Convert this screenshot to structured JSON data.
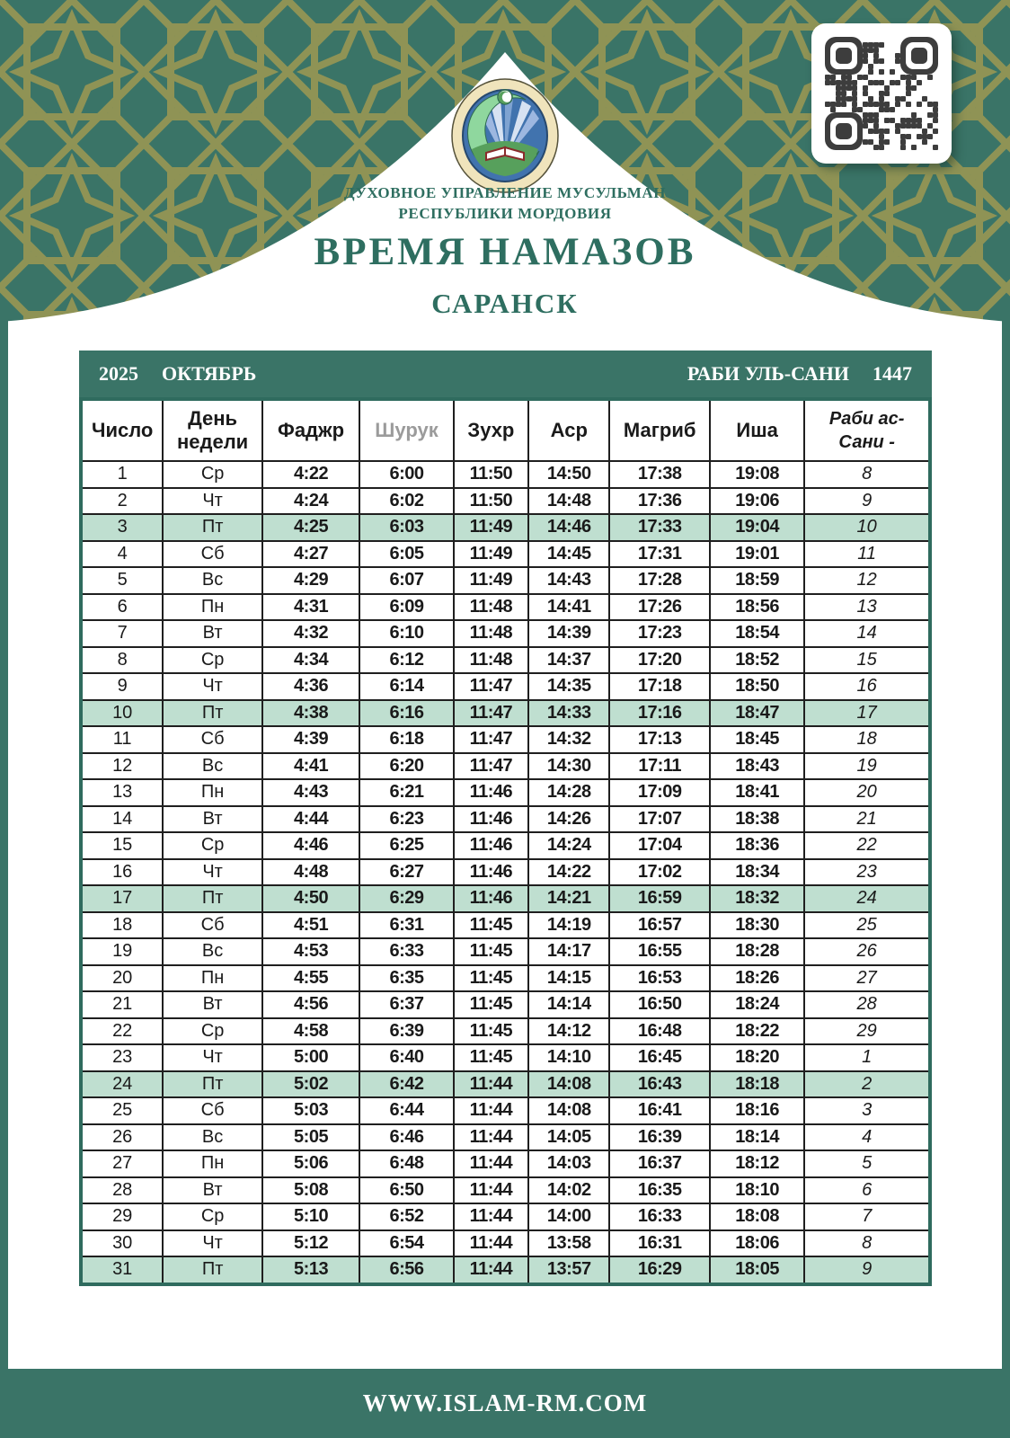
{
  "header": {
    "org_line1": "ДУХОВНОЕ УПРАВЛЕНИЕ МУСУЛЬМАН",
    "org_line2": "РЕСПУБЛИКИ МОРДОВИЯ",
    "title": "ВРЕМЯ НАМАЗОВ",
    "city": "САРАНСК"
  },
  "calendar_bar": {
    "year": "2025",
    "month": "ОКТЯБРЬ",
    "hijri_month": "РАБИ УЛЬ-САНИ",
    "hijri_year": "1447"
  },
  "icons": {
    "emblem": "crescent-rays-book-emblem",
    "qr": "qr-code"
  },
  "colors": {
    "teal_green": "#3A7467",
    "olive_pattern": "#8F9355",
    "highlight_row": "#BFDFD0",
    "muted_gray": "#9B9B9B",
    "title_green": "#2E6E60",
    "table_outline": "#2F6B5E",
    "cell_border": "#1F1F1F",
    "emblem_cream": "#F0E4BC"
  },
  "table": {
    "columns": [
      "Число",
      "День\nнедели",
      "Фаджр",
      "Шурук",
      "Зухр",
      "Аср",
      "Магриб",
      "Иша",
      "Раби ас-\nСани -"
    ],
    "column_keys": [
      "date",
      "dow",
      "fajr",
      "shuruk",
      "zuhr",
      "asr",
      "maghrib",
      "isha",
      "hijri"
    ],
    "rows": [
      {
        "date": "1",
        "dow": "Ср",
        "fajr": "4:22",
        "shuruk": "6:00",
        "zuhr": "11:50",
        "asr": "14:50",
        "maghrib": "17:38",
        "isha": "19:08",
        "hijri": "8",
        "highlighted": false
      },
      {
        "date": "2",
        "dow": "Чт",
        "fajr": "4:24",
        "shuruk": "6:02",
        "zuhr": "11:50",
        "asr": "14:48",
        "maghrib": "17:36",
        "isha": "19:06",
        "hijri": "9",
        "highlighted": false
      },
      {
        "date": "3",
        "dow": "Пт",
        "fajr": "4:25",
        "shuruk": "6:03",
        "zuhr": "11:49",
        "asr": "14:46",
        "maghrib": "17:33",
        "isha": "19:04",
        "hijri": "10",
        "highlighted": true
      },
      {
        "date": "4",
        "dow": "Сб",
        "fajr": "4:27",
        "shuruk": "6:05",
        "zuhr": "11:49",
        "asr": "14:45",
        "maghrib": "17:31",
        "isha": "19:01",
        "hijri": "11",
        "highlighted": false
      },
      {
        "date": "5",
        "dow": "Вс",
        "fajr": "4:29",
        "shuruk": "6:07",
        "zuhr": "11:49",
        "asr": "14:43",
        "maghrib": "17:28",
        "isha": "18:59",
        "hijri": "12",
        "highlighted": false
      },
      {
        "date": "6",
        "dow": "Пн",
        "fajr": "4:31",
        "shuruk": "6:09",
        "zuhr": "11:48",
        "asr": "14:41",
        "maghrib": "17:26",
        "isha": "18:56",
        "hijri": "13",
        "highlighted": false
      },
      {
        "date": "7",
        "dow": "Вт",
        "fajr": "4:32",
        "shuruk": "6:10",
        "zuhr": "11:48",
        "asr": "14:39",
        "maghrib": "17:23",
        "isha": "18:54",
        "hijri": "14",
        "highlighted": false
      },
      {
        "date": "8",
        "dow": "Ср",
        "fajr": "4:34",
        "shuruk": "6:12",
        "zuhr": "11:48",
        "asr": "14:37",
        "maghrib": "17:20",
        "isha": "18:52",
        "hijri": "15",
        "highlighted": false
      },
      {
        "date": "9",
        "dow": "Чт",
        "fajr": "4:36",
        "shuruk": "6:14",
        "zuhr": "11:47",
        "asr": "14:35",
        "maghrib": "17:18",
        "isha": "18:50",
        "hijri": "16",
        "highlighted": false
      },
      {
        "date": "10",
        "dow": "Пт",
        "fajr": "4:38",
        "shuruk": "6:16",
        "zuhr": "11:47",
        "asr": "14:33",
        "maghrib": "17:16",
        "isha": "18:47",
        "hijri": "17",
        "highlighted": true
      },
      {
        "date": "11",
        "dow": "Сб",
        "fajr": "4:39",
        "shuruk": "6:18",
        "zuhr": "11:47",
        "asr": "14:32",
        "maghrib": "17:13",
        "isha": "18:45",
        "hijri": "18",
        "highlighted": false
      },
      {
        "date": "12",
        "dow": "Вс",
        "fajr": "4:41",
        "shuruk": "6:20",
        "zuhr": "11:47",
        "asr": "14:30",
        "maghrib": "17:11",
        "isha": "18:43",
        "hijri": "19",
        "highlighted": false
      },
      {
        "date": "13",
        "dow": "Пн",
        "fajr": "4:43",
        "shuruk": "6:21",
        "zuhr": "11:46",
        "asr": "14:28",
        "maghrib": "17:09",
        "isha": "18:41",
        "hijri": "20",
        "highlighted": false
      },
      {
        "date": "14",
        "dow": "Вт",
        "fajr": "4:44",
        "shuruk": "6:23",
        "zuhr": "11:46",
        "asr": "14:26",
        "maghrib": "17:07",
        "isha": "18:38",
        "hijri": "21",
        "highlighted": false
      },
      {
        "date": "15",
        "dow": "Ср",
        "fajr": "4:46",
        "shuruk": "6:25",
        "zuhr": "11:46",
        "asr": "14:24",
        "maghrib": "17:04",
        "isha": "18:36",
        "hijri": "22",
        "highlighted": false
      },
      {
        "date": "16",
        "dow": "Чт",
        "fajr": "4:48",
        "shuruk": "6:27",
        "zuhr": "11:46",
        "asr": "14:22",
        "maghrib": "17:02",
        "isha": "18:34",
        "hijri": "23",
        "highlighted": false
      },
      {
        "date": "17",
        "dow": "Пт",
        "fajr": "4:50",
        "shuruk": "6:29",
        "zuhr": "11:46",
        "asr": "14:21",
        "maghrib": "16:59",
        "isha": "18:32",
        "hijri": "24",
        "highlighted": true
      },
      {
        "date": "18",
        "dow": "Сб",
        "fajr": "4:51",
        "shuruk": "6:31",
        "zuhr": "11:45",
        "asr": "14:19",
        "maghrib": "16:57",
        "isha": "18:30",
        "hijri": "25",
        "highlighted": false
      },
      {
        "date": "19",
        "dow": "Вс",
        "fajr": "4:53",
        "shuruk": "6:33",
        "zuhr": "11:45",
        "asr": "14:17",
        "maghrib": "16:55",
        "isha": "18:28",
        "hijri": "26",
        "highlighted": false
      },
      {
        "date": "20",
        "dow": "Пн",
        "fajr": "4:55",
        "shuruk": "6:35",
        "zuhr": "11:45",
        "asr": "14:15",
        "maghrib": "16:53",
        "isha": "18:26",
        "hijri": "27",
        "highlighted": false
      },
      {
        "date": "21",
        "dow": "Вт",
        "fajr": "4:56",
        "shuruk": "6:37",
        "zuhr": "11:45",
        "asr": "14:14",
        "maghrib": "16:50",
        "isha": "18:24",
        "hijri": "28",
        "highlighted": false
      },
      {
        "date": "22",
        "dow": "Ср",
        "fajr": "4:58",
        "shuruk": "6:39",
        "zuhr": "11:45",
        "asr": "14:12",
        "maghrib": "16:48",
        "isha": "18:22",
        "hijri": "29",
        "highlighted": false
      },
      {
        "date": "23",
        "dow": "Чт",
        "fajr": "5:00",
        "shuruk": "6:40",
        "zuhr": "11:45",
        "asr": "14:10",
        "maghrib": "16:45",
        "isha": "18:20",
        "hijri": "1",
        "highlighted": false
      },
      {
        "date": "24",
        "dow": "Пт",
        "fajr": "5:02",
        "shuruk": "6:42",
        "zuhr": "11:44",
        "asr": "14:08",
        "maghrib": "16:43",
        "isha": "18:18",
        "hijri": "2",
        "highlighted": true
      },
      {
        "date": "25",
        "dow": "Сб",
        "fajr": "5:03",
        "shuruk": "6:44",
        "zuhr": "11:44",
        "asr": "14:08",
        "maghrib": "16:41",
        "isha": "18:16",
        "hijri": "3",
        "highlighted": false
      },
      {
        "date": "26",
        "dow": "Вс",
        "fajr": "5:05",
        "shuruk": "6:46",
        "zuhr": "11:44",
        "asr": "14:05",
        "maghrib": "16:39",
        "isha": "18:14",
        "hijri": "4",
        "highlighted": false
      },
      {
        "date": "27",
        "dow": "Пн",
        "fajr": "5:06",
        "shuruk": "6:48",
        "zuhr": "11:44",
        "asr": "14:03",
        "maghrib": "16:37",
        "isha": "18:12",
        "hijri": "5",
        "highlighted": false
      },
      {
        "date": "28",
        "dow": "Вт",
        "fajr": "5:08",
        "shuruk": "6:50",
        "zuhr": "11:44",
        "asr": "14:02",
        "maghrib": "16:35",
        "isha": "18:10",
        "hijri": "6",
        "highlighted": false
      },
      {
        "date": "29",
        "dow": "Ср",
        "fajr": "5:10",
        "shuruk": "6:52",
        "zuhr": "11:44",
        "asr": "14:00",
        "maghrib": "16:33",
        "isha": "18:08",
        "hijri": "7",
        "highlighted": false
      },
      {
        "date": "30",
        "dow": "Чт",
        "fajr": "5:12",
        "shuruk": "6:54",
        "zuhr": "11:44",
        "asr": "13:58",
        "maghrib": "16:31",
        "isha": "18:06",
        "hijri": "8",
        "highlighted": false
      },
      {
        "date": "31",
        "dow": "Пт",
        "fajr": "5:13",
        "shuruk": "6:56",
        "zuhr": "11:44",
        "asr": "13:57",
        "maghrib": "16:29",
        "isha": "18:05",
        "hijri": "9",
        "highlighted": true
      }
    ]
  },
  "footer": {
    "website": "WWW.ISLAM-RM.COM"
  }
}
